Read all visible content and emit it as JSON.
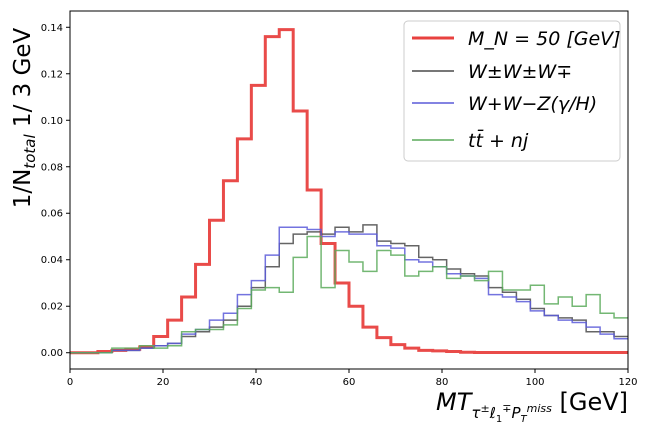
{
  "chart_data": {
    "type": "line",
    "style": "step histogram",
    "ylabel": "1/N_total  1/ 3 GeV",
    "xlabel": "MT_{τ±ℓ1∓P_T^miss} [GeV]",
    "xlim": [
      0,
      120
    ],
    "ylim": [
      -0.007,
      0.147
    ],
    "bin_width": 3,
    "x_ticks": [
      0,
      20,
      40,
      60,
      80,
      100,
      120
    ],
    "y_ticks": [
      0.0,
      0.02,
      0.04,
      0.06,
      0.08,
      0.1,
      0.12,
      0.14
    ],
    "x_tick_labels": [
      "0",
      "20",
      "40",
      "60",
      "80",
      "100",
      "120"
    ],
    "y_tick_labels": [
      "0.00",
      "0.02",
      "0.04",
      "0.06",
      "0.08",
      "0.10",
      "0.12",
      "0.14"
    ],
    "legend_position": "top-right",
    "grid": false,
    "bin_edges": [
      0,
      3,
      6,
      9,
      12,
      15,
      18,
      21,
      24,
      27,
      30,
      33,
      36,
      39,
      42,
      45,
      48,
      51,
      54,
      57,
      60,
      63,
      66,
      69,
      72,
      75,
      78,
      81,
      84,
      87,
      90,
      93,
      96,
      99,
      102,
      105,
      108,
      111,
      114,
      117,
      120
    ],
    "series": [
      {
        "name": "M_N = 50 [GeV]",
        "color": "#e8413f",
        "width": 3,
        "values": [
          0.0,
          0.0,
          0.0005,
          0.001,
          0.0015,
          0.0025,
          0.007,
          0.014,
          0.024,
          0.038,
          0.057,
          0.074,
          0.092,
          0.115,
          0.136,
          0.139,
          0.104,
          0.07,
          0.047,
          0.03,
          0.02,
          0.011,
          0.0065,
          0.0035,
          0.002,
          0.001,
          0.0008,
          0.0005,
          0.0002,
          0.0001,
          0.0001,
          0.0001,
          0.0001,
          0.0001,
          0.0001,
          0.0001,
          0.0001,
          0.0001,
          0.0001,
          0.0001
        ]
      },
      {
        "name": "W±W±W∓",
        "color": "#4a4a4a",
        "width": 1.5,
        "values": [
          0.0,
          0.0,
          0.0,
          0.001,
          0.001,
          0.002,
          0.003,
          0.004,
          0.007,
          0.009,
          0.011,
          0.014,
          0.02,
          0.028,
          0.037,
          0.047,
          0.051,
          0.052,
          0.051,
          0.054,
          0.052,
          0.055,
          0.048,
          0.047,
          0.046,
          0.041,
          0.04,
          0.036,
          0.034,
          0.033,
          0.028,
          0.026,
          0.023,
          0.019,
          0.016,
          0.015,
          0.014,
          0.009,
          0.009,
          0.007
        ]
      },
      {
        "name": "W+W−Z(γ/H)",
        "color": "#5a5ad9",
        "width": 1.5,
        "values": [
          0.0,
          0.0,
          0.0,
          0.001,
          0.001,
          0.002,
          0.003,
          0.004,
          0.008,
          0.01,
          0.014,
          0.017,
          0.025,
          0.031,
          0.042,
          0.054,
          0.054,
          0.053,
          0.05,
          0.052,
          0.051,
          0.051,
          0.046,
          0.045,
          0.04,
          0.039,
          0.037,
          0.034,
          0.033,
          0.032,
          0.025,
          0.024,
          0.022,
          0.018,
          0.016,
          0.014,
          0.013,
          0.011,
          0.008,
          0.006
        ]
      },
      {
        "name": "tt̄ + nj",
        "color": "#5aaa5a",
        "width": 1.5,
        "values": [
          0.0,
          0.0,
          0.0,
          0.002,
          0.002,
          0.003,
          0.002,
          0.003,
          0.009,
          0.01,
          0.01,
          0.012,
          0.019,
          0.027,
          0.028,
          0.026,
          0.041,
          0.05,
          0.028,
          0.044,
          0.039,
          0.035,
          0.044,
          0.042,
          0.033,
          0.035,
          0.037,
          0.032,
          0.033,
          0.031,
          0.035,
          0.027,
          0.027,
          0.029,
          0.021,
          0.024,
          0.02,
          0.025,
          0.017,
          0.015
        ]
      }
    ]
  }
}
